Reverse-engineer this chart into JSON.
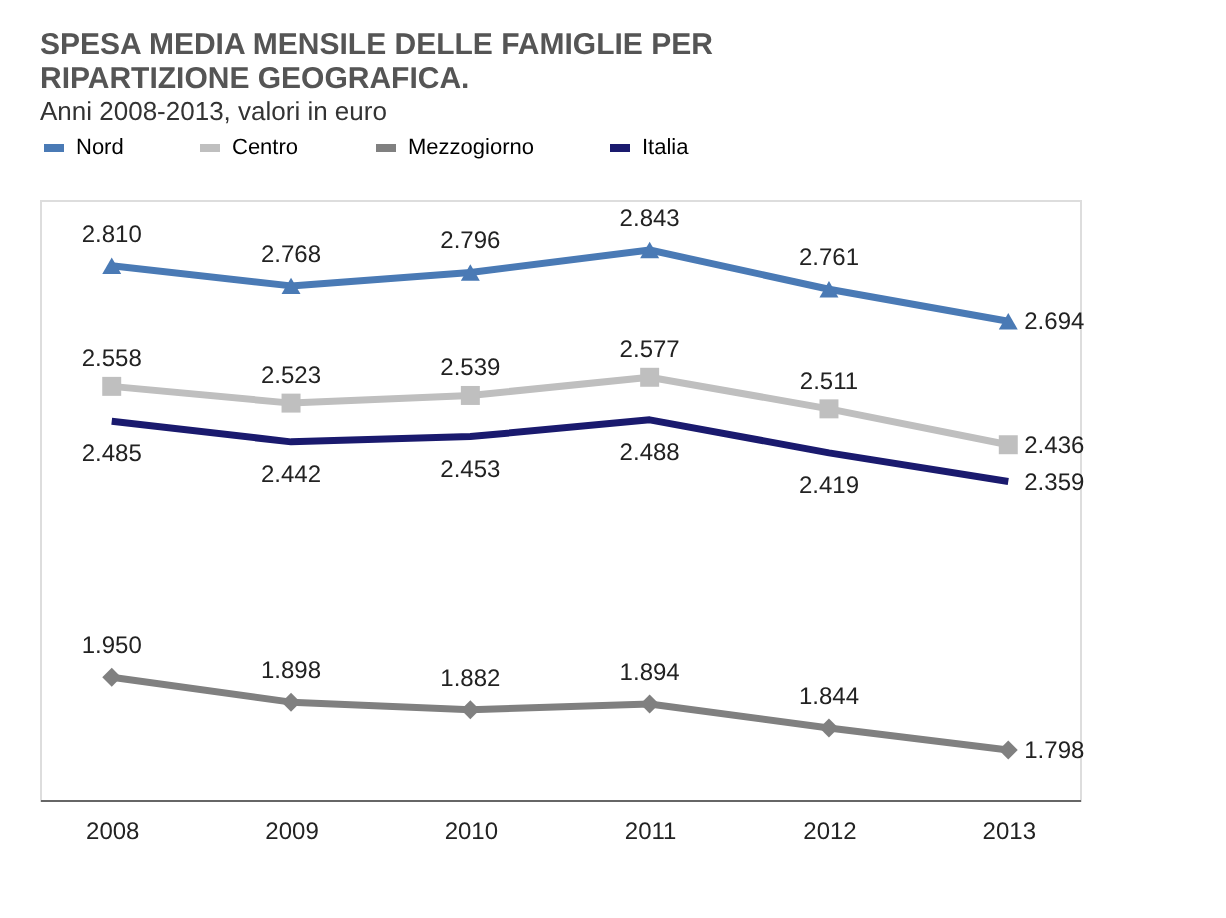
{
  "chart_data": {
    "type": "line",
    "title": "SPESA MEDIA MENSILE DELLE FAMIGLIE PER RIPARTIZIONE GEOGRAFICA.",
    "subtitle": "Anni 2008-2013, valori in euro",
    "categories": [
      "2008",
      "2009",
      "2010",
      "2011",
      "2012",
      "2013"
    ],
    "series": [
      {
        "name": "Nord",
        "color": "#4a7ab5",
        "marker": "triangle",
        "values": [
          2810,
          2768,
          2796,
          2843,
          2761,
          2694
        ],
        "value_labels": [
          "2.810",
          "2.768",
          "2.796",
          "2.843",
          "2.761",
          "2.694"
        ]
      },
      {
        "name": "Centro",
        "color": "#bfbfbf",
        "marker": "square",
        "values": [
          2558,
          2523,
          2539,
          2577,
          2511,
          2436
        ],
        "value_labels": [
          "2.558",
          "2.523",
          "2.539",
          "2.577",
          "2.511",
          "2.436"
        ]
      },
      {
        "name": "Mezzogiorno",
        "color": "#808080",
        "marker": "diamond",
        "values": [
          1950,
          1898,
          1882,
          1894,
          1844,
          1798
        ],
        "value_labels": [
          "1.950",
          "1.898",
          "1.882",
          "1.894",
          "1.844",
          "1.798"
        ]
      },
      {
        "name": "Italia",
        "color": "#1a1a6e",
        "marker": "none",
        "values": [
          2485,
          2442,
          2453,
          2488,
          2419,
          2359
        ],
        "value_labels": [
          "2.485",
          "2.442",
          "2.453",
          "2.488",
          "2.419",
          "2.359"
        ]
      }
    ],
    "legend": "top",
    "grid": false
  }
}
